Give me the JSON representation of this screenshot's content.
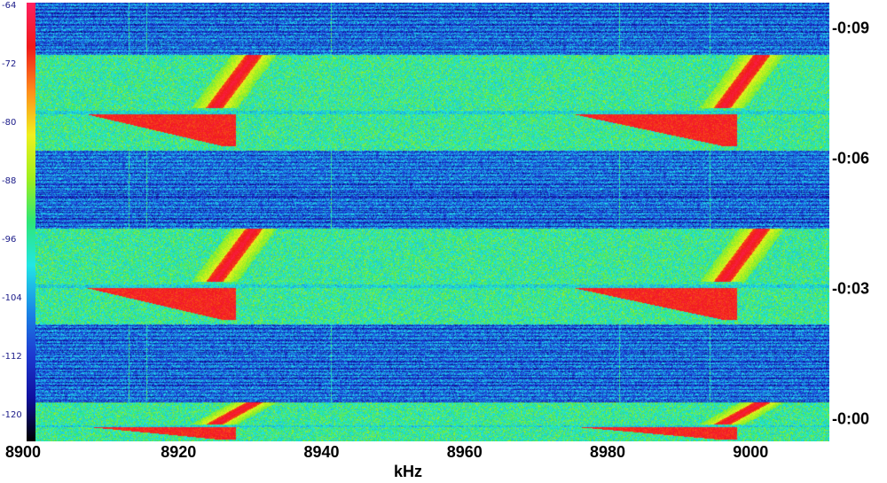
{
  "chart_data": {
    "type": "heatmap",
    "title": "",
    "xlabel": "kHz",
    "ylabel": "",
    "x_range": [
      8900,
      9011
    ],
    "x_ticks": [
      8900,
      8920,
      8940,
      8960,
      8980,
      9000
    ],
    "x_tick_labels": [
      "8900",
      "8920",
      "8940",
      "8960",
      "8980",
      "9000"
    ],
    "y_ticks": [
      {
        "label": "-0:09",
        "t": 9
      },
      {
        "label": "-0:06",
        "t": 6
      },
      {
        "label": "-0:03",
        "t": 3
      },
      {
        "label": "-0:00",
        "t": 0
      }
    ],
    "colorbar": {
      "range": [
        -124,
        -64
      ],
      "ticks": [
        "-64",
        "-72",
        "-80",
        "-88",
        "-96",
        "-104",
        "-112",
        "-120"
      ],
      "colors": [
        "#000000",
        "#1010a0",
        "#1e3cd2",
        "#1a8ae6",
        "#22e6e6",
        "#2ee678",
        "#a0f01e",
        "#f0f01e",
        "#ff8c1a",
        "#f01a1a",
        "#ff2060"
      ]
    },
    "bands": [
      {
        "t_start": 9.6,
        "t_end": 8.4,
        "type": "quiet"
      },
      {
        "t_start": 8.4,
        "t_end": 6.2,
        "type": "active"
      },
      {
        "t_start": 6.2,
        "t_end": 4.4,
        "type": "quiet"
      },
      {
        "t_start": 4.4,
        "t_end": 2.2,
        "type": "active"
      },
      {
        "t_start": 2.2,
        "t_end": 0.4,
        "type": "quiet"
      },
      {
        "t_start": 0.4,
        "t_end": -0.5,
        "type": "active"
      }
    ],
    "traces": [
      {
        "center_khz": 8925,
        "repeat_khz": 9003
      },
      {
        "center_khz": 8972,
        "repeat_khz": 8994
      }
    ]
  }
}
